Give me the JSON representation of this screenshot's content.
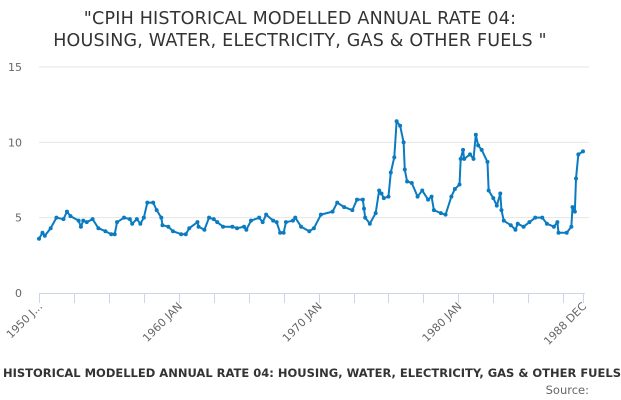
{
  "chart_data": {
    "type": "line",
    "title": "\"CPIH HISTORICAL MODELLED ANNUAL RATE 04:\nHOUSING, WATER, ELECTRICITY, GAS & OTHER FUELS \"",
    "xlabel": "",
    "ylabel": "",
    "ylim": [
      0,
      15
    ],
    "yticks": [
      "0",
      "5",
      "10",
      "15"
    ],
    "xlim": [
      "1950-01",
      "1988-12"
    ],
    "xtick_labels": [
      {
        "date": "1950-01",
        "label": "1950 J..."
      },
      {
        "date": "1960-01",
        "label": "1960 JAN"
      },
      {
        "date": "1970-01",
        "label": "1970 JAN"
      },
      {
        "date": "1980-01",
        "label": "1980 JAN"
      },
      {
        "date": "1988-12",
        "label": "1988 DEC"
      }
    ],
    "grid": true,
    "legend": "none",
    "series_color": "#0b7bc1",
    "series": [
      {
        "points": [
          [
            "1950-01",
            3.6
          ],
          [
            "1950-04",
            4.0
          ],
          [
            "1950-06",
            3.8
          ],
          [
            "1950-11",
            4.3
          ],
          [
            "1951-04",
            5.0
          ],
          [
            "1951-10",
            4.9
          ],
          [
            "1952-01",
            5.4
          ],
          [
            "1952-04",
            5.1
          ],
          [
            "1952-11",
            4.8
          ],
          [
            "1953-01",
            4.4
          ],
          [
            "1953-03",
            4.8
          ],
          [
            "1953-06",
            4.7
          ],
          [
            "1953-11",
            4.9
          ],
          [
            "1954-04",
            4.3
          ],
          [
            "1954-10",
            4.1
          ],
          [
            "1955-03",
            3.9
          ],
          [
            "1955-06",
            3.9
          ],
          [
            "1955-08",
            4.7
          ],
          [
            "1956-02",
            5.0
          ],
          [
            "1956-07",
            4.9
          ],
          [
            "1956-09",
            4.6
          ],
          [
            "1957-01",
            4.9
          ],
          [
            "1957-04",
            4.6
          ],
          [
            "1957-07",
            5.0
          ],
          [
            "1957-10",
            6.0
          ],
          [
            "1958-03",
            6.0
          ],
          [
            "1958-06",
            5.5
          ],
          [
            "1958-10",
            5.0
          ],
          [
            "1958-11",
            4.5
          ],
          [
            "1959-04",
            4.4
          ],
          [
            "1959-08",
            4.1
          ],
          [
            "1960-03",
            3.9
          ],
          [
            "1960-07",
            3.9
          ],
          [
            "1960-10",
            4.3
          ],
          [
            "1961-05",
            4.7
          ],
          [
            "1961-06",
            4.4
          ],
          [
            "1961-11",
            4.2
          ],
          [
            "1962-03",
            5.0
          ],
          [
            "1962-07",
            4.9
          ],
          [
            "1962-10",
            4.7
          ],
          [
            "1963-03",
            4.4
          ],
          [
            "1963-11",
            4.4
          ],
          [
            "1964-03",
            4.3
          ],
          [
            "1964-09",
            4.4
          ],
          [
            "1964-11",
            4.2
          ],
          [
            "1965-03",
            4.8
          ],
          [
            "1965-10",
            5.0
          ],
          [
            "1966-01",
            4.7
          ],
          [
            "1966-04",
            5.2
          ],
          [
            "1966-10",
            4.8
          ],
          [
            "1967-01",
            4.7
          ],
          [
            "1967-04",
            4.0
          ],
          [
            "1967-07",
            4.0
          ],
          [
            "1967-09",
            4.7
          ],
          [
            "1968-03",
            4.8
          ],
          [
            "1968-05",
            5.0
          ],
          [
            "1968-10",
            4.4
          ],
          [
            "1969-05",
            4.1
          ],
          [
            "1969-09",
            4.3
          ],
          [
            "1970-03",
            5.2
          ],
          [
            "1971-01",
            5.4
          ],
          [
            "1971-05",
            6.0
          ],
          [
            "1971-11",
            5.7
          ],
          [
            "1972-06",
            5.5
          ],
          [
            "1972-10",
            6.2
          ],
          [
            "1973-03",
            6.2
          ],
          [
            "1973-04",
            5.6
          ],
          [
            "1973-05",
            5.0
          ],
          [
            "1973-09",
            4.6
          ],
          [
            "1974-02",
            5.3
          ],
          [
            "1974-05",
            6.8
          ],
          [
            "1974-07",
            6.6
          ],
          [
            "1974-09",
            6.3
          ],
          [
            "1975-01",
            6.4
          ],
          [
            "1975-03",
            8.0
          ],
          [
            "1975-06",
            9.0
          ],
          [
            "1975-08",
            11.4
          ],
          [
            "1975-11",
            11.1
          ],
          [
            "1976-02",
            10.0
          ],
          [
            "1976-03",
            8.2
          ],
          [
            "1976-05",
            7.4
          ],
          [
            "1976-09",
            7.3
          ],
          [
            "1977-02",
            6.4
          ],
          [
            "1977-06",
            6.8
          ],
          [
            "1977-11",
            6.2
          ],
          [
            "1978-02",
            6.4
          ],
          [
            "1978-04",
            5.5
          ],
          [
            "1978-10",
            5.3
          ],
          [
            "1979-02",
            5.2
          ],
          [
            "1979-07",
            6.4
          ],
          [
            "1979-10",
            6.9
          ],
          [
            "1980-02",
            7.2
          ],
          [
            "1980-03",
            8.9
          ],
          [
            "1980-05",
            9.5
          ],
          [
            "1980-06",
            8.9
          ],
          [
            "1980-11",
            9.2
          ],
          [
            "1981-02",
            8.9
          ],
          [
            "1981-04",
            10.5
          ],
          [
            "1981-06",
            9.8
          ],
          [
            "1981-09",
            9.5
          ],
          [
            "1982-02",
            8.7
          ],
          [
            "1982-03",
            6.8
          ],
          [
            "1982-07",
            6.3
          ],
          [
            "1982-10",
            5.8
          ],
          [
            "1983-01",
            6.6
          ],
          [
            "1983-02",
            5.5
          ],
          [
            "1983-04",
            4.8
          ],
          [
            "1983-10",
            4.5
          ],
          [
            "1984-02",
            4.2
          ],
          [
            "1984-04",
            4.6
          ],
          [
            "1984-09",
            4.4
          ],
          [
            "1985-02",
            4.7
          ],
          [
            "1985-07",
            5.0
          ],
          [
            "1986-01",
            5.0
          ],
          [
            "1986-05",
            4.6
          ],
          [
            "1986-11",
            4.4
          ],
          [
            "1987-02",
            4.7
          ],
          [
            "1987-03",
            4.0
          ],
          [
            "1987-10",
            4.0
          ],
          [
            "1988-02",
            4.4
          ],
          [
            "1988-03",
            5.7
          ],
          [
            "1988-05",
            5.4
          ],
          [
            "1988-06",
            7.6
          ],
          [
            "1988-08",
            9.2
          ],
          [
            "1988-12",
            9.4
          ]
        ]
      }
    ]
  },
  "footer": {
    "series_title": "HISTORICAL MODELLED ANNUAL RATE 04: HOUSING, WATER, ELECTRICITY, GAS & OTHER FUELS",
    "source": "Source:"
  }
}
